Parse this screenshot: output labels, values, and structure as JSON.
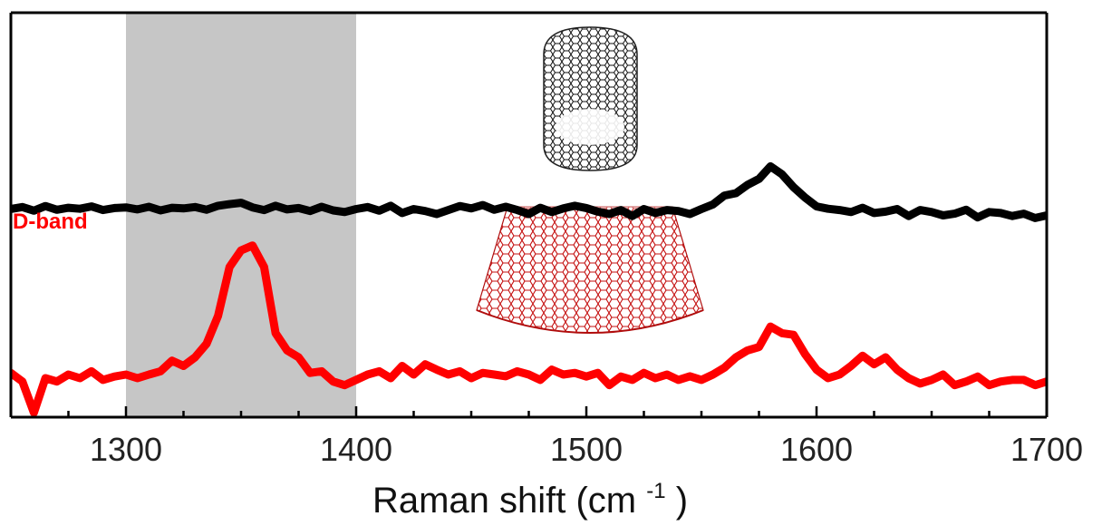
{
  "chart_data": {
    "type": "line",
    "title": "",
    "xlabel": "Raman shift",
    "xlabel_unit_prefix": "(cm",
    "xlabel_unit_exp": "-1",
    "xlabel_unit_suffix": ")",
    "ylabel": "",
    "xlim": [
      1250,
      1700
    ],
    "ylim": [
      0,
      1
    ],
    "xticks": [
      1300,
      1400,
      1500,
      1600,
      1700
    ],
    "grid": false,
    "legend": "none",
    "highlight_band": {
      "x0": 1300,
      "x1": 1400,
      "color": "#c6c6c6"
    },
    "annotations": [
      {
        "text": "D-band",
        "color": "#ff0000"
      }
    ],
    "series": [
      {
        "color": "#000000",
        "x": [
          1250,
          1255,
          1260,
          1265,
          1270,
          1275,
          1280,
          1285,
          1290,
          1295,
          1300,
          1305,
          1310,
          1315,
          1320,
          1325,
          1330,
          1335,
          1340,
          1345,
          1350,
          1355,
          1360,
          1365,
          1370,
          1375,
          1380,
          1385,
          1390,
          1395,
          1400,
          1405,
          1410,
          1415,
          1420,
          1425,
          1430,
          1435,
          1440,
          1445,
          1450,
          1455,
          1460,
          1465,
          1470,
          1475,
          1480,
          1485,
          1490,
          1495,
          1500,
          1505,
          1510,
          1515,
          1520,
          1525,
          1530,
          1535,
          1540,
          1545,
          1550,
          1555,
          1560,
          1565,
          1570,
          1575,
          1580,
          1585,
          1590,
          1595,
          1600,
          1605,
          1610,
          1615,
          1620,
          1625,
          1630,
          1635,
          1640,
          1645,
          1650,
          1655,
          1660,
          1665,
          1670,
          1675,
          1680,
          1685,
          1690,
          1695,
          1700
        ],
        "y": [
          0.615,
          0.621,
          0.61,
          0.624,
          0.613,
          0.619,
          0.616,
          0.623,
          0.612,
          0.618,
          0.62,
          0.614,
          0.622,
          0.611,
          0.619,
          0.617,
          0.621,
          0.613,
          0.625,
          0.63,
          0.634,
          0.62,
          0.612,
          0.625,
          0.614,
          0.618,
          0.609,
          0.622,
          0.611,
          0.606,
          0.615,
          0.621,
          0.61,
          0.625,
          0.603,
          0.615,
          0.609,
          0.6,
          0.612,
          0.624,
          0.617,
          0.627,
          0.613,
          0.622,
          0.612,
          0.6,
          0.619,
          0.606,
          0.617,
          0.625,
          0.618,
          0.607,
          0.6,
          0.612,
          0.594,
          0.615,
          0.603,
          0.612,
          0.609,
          0.6,
          0.615,
          0.629,
          0.656,
          0.663,
          0.688,
          0.706,
          0.744,
          0.72,
          0.681,
          0.65,
          0.623,
          0.616,
          0.612,
          0.606,
          0.619,
          0.603,
          0.607,
          0.615,
          0.594,
          0.612,
          0.606,
          0.596,
          0.601,
          0.613,
          0.59,
          0.606,
          0.603,
          0.594,
          0.601,
          0.588,
          0.596
        ]
      },
      {
        "color": "#ff0000",
        "x": [
          1250,
          1255,
          1260,
          1265,
          1270,
          1275,
          1280,
          1285,
          1290,
          1295,
          1300,
          1305,
          1310,
          1315,
          1320,
          1325,
          1330,
          1335,
          1340,
          1345,
          1350,
          1355,
          1360,
          1365,
          1370,
          1375,
          1380,
          1385,
          1390,
          1395,
          1400,
          1405,
          1410,
          1415,
          1420,
          1425,
          1430,
          1435,
          1440,
          1445,
          1450,
          1455,
          1460,
          1465,
          1470,
          1475,
          1480,
          1485,
          1490,
          1495,
          1500,
          1505,
          1510,
          1515,
          1520,
          1525,
          1530,
          1535,
          1540,
          1545,
          1550,
          1555,
          1560,
          1565,
          1570,
          1575,
          1580,
          1585,
          1590,
          1595,
          1600,
          1605,
          1610,
          1615,
          1620,
          1625,
          1630,
          1635,
          1640,
          1645,
          1650,
          1655,
          1660,
          1665,
          1670,
          1675,
          1680,
          1685,
          1690,
          1695,
          1700
        ],
        "y": [
          0.12,
          0.094,
          0.0,
          0.104,
          0.094,
          0.115,
          0.104,
          0.125,
          0.099,
          0.109,
          0.115,
          0.104,
          0.115,
          0.125,
          0.157,
          0.141,
          0.167,
          0.208,
          0.292,
          0.44,
          0.49,
          0.505,
          0.44,
          0.24,
          0.188,
          0.167,
          0.12,
          0.125,
          0.094,
          0.083,
          0.099,
          0.115,
          0.125,
          0.104,
          0.141,
          0.115,
          0.146,
          0.13,
          0.115,
          0.125,
          0.104,
          0.12,
          0.115,
          0.11,
          0.125,
          0.115,
          0.099,
          0.13,
          0.115,
          0.12,
          0.109,
          0.12,
          0.083,
          0.109,
          0.099,
          0.12,
          0.104,
          0.115,
          0.099,
          0.11,
          0.099,
          0.115,
          0.136,
          0.167,
          0.188,
          0.198,
          0.26,
          0.24,
          0.235,
          0.177,
          0.13,
          0.104,
          0.115,
          0.141,
          0.172,
          0.146,
          0.167,
          0.13,
          0.104,
          0.088,
          0.099,
          0.115,
          0.083,
          0.094,
          0.109,
          0.083,
          0.094,
          0.099,
          0.099,
          0.083,
          0.094
        ]
      }
    ]
  },
  "insets": [
    {
      "name": "nanotube-black",
      "color": "#1a1a1a"
    },
    {
      "name": "nanotube-red",
      "color": "#cc1515"
    }
  ]
}
